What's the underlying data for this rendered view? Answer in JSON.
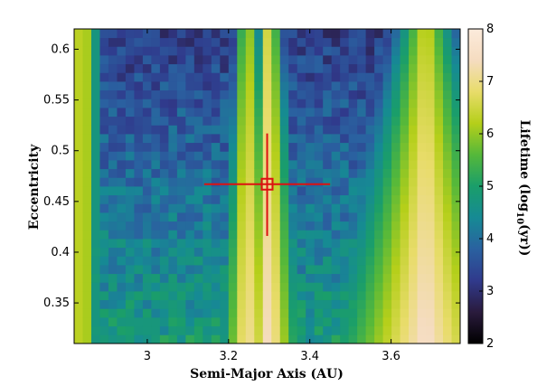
{
  "chart_data": {
    "type": "heatmap",
    "title": "",
    "xlabel": "Semi-Major Axis (AU)",
    "ylabel": "Eccentricity",
    "colorbar_label_parts": [
      "Lifetime (log",
      "10",
      "(yr))"
    ],
    "xlim": [
      2.82,
      3.77
    ],
    "ylim": [
      0.31,
      0.62
    ],
    "x_ticks": [
      3,
      3.2,
      3.4,
      3.6
    ],
    "x_tick_labels": [
      "3",
      "3.2",
      "3.4",
      "3.6"
    ],
    "y_ticks": [
      0.35,
      0.4,
      0.45,
      0.5,
      0.55,
      0.6
    ],
    "y_tick_labels": [
      "0.35",
      "0.4",
      "0.45",
      "0.5",
      "0.55",
      "0.6"
    ],
    "colorbar": {
      "min": 2,
      "max": 8,
      "ticks": [
        2,
        3,
        4,
        5,
        6,
        7,
        8
      ],
      "tick_labels": [
        "2",
        "3",
        "4",
        "5",
        "6",
        "7",
        "8"
      ]
    },
    "grid": false,
    "grid_size": {
      "nx": 45,
      "ny": 36
    },
    "features": {
      "left_band": {
        "x": 2.84,
        "halfwidth": 0.018,
        "value": 6.9
      },
      "central_peaks": [
        {
          "x": 3.245,
          "halfwidth": 0.014,
          "value": 7.4
        },
        {
          "x": 3.3,
          "halfwidth": 0.016,
          "value": 7.6
        }
      ],
      "right_peak": {
        "x": 3.685,
        "halfwidth": 0.04,
        "value": 6.6
      },
      "background_high_e": 3.2,
      "background_low_e": 4.8
    },
    "marker": {
      "x": 3.295,
      "y": 0.467,
      "x_error": [
        3.14,
        3.45
      ],
      "y_error": [
        0.416,
        0.517
      ],
      "color": "#dd1111"
    },
    "colormap": [
      "#000000",
      "#2a1b3d",
      "#303a8c",
      "#2a61a0",
      "#168a94",
      "#1a9e6a",
      "#55b83a",
      "#b5cf1a",
      "#e8dc6a",
      "#f5dcc0",
      "#fcebdc"
    ]
  }
}
